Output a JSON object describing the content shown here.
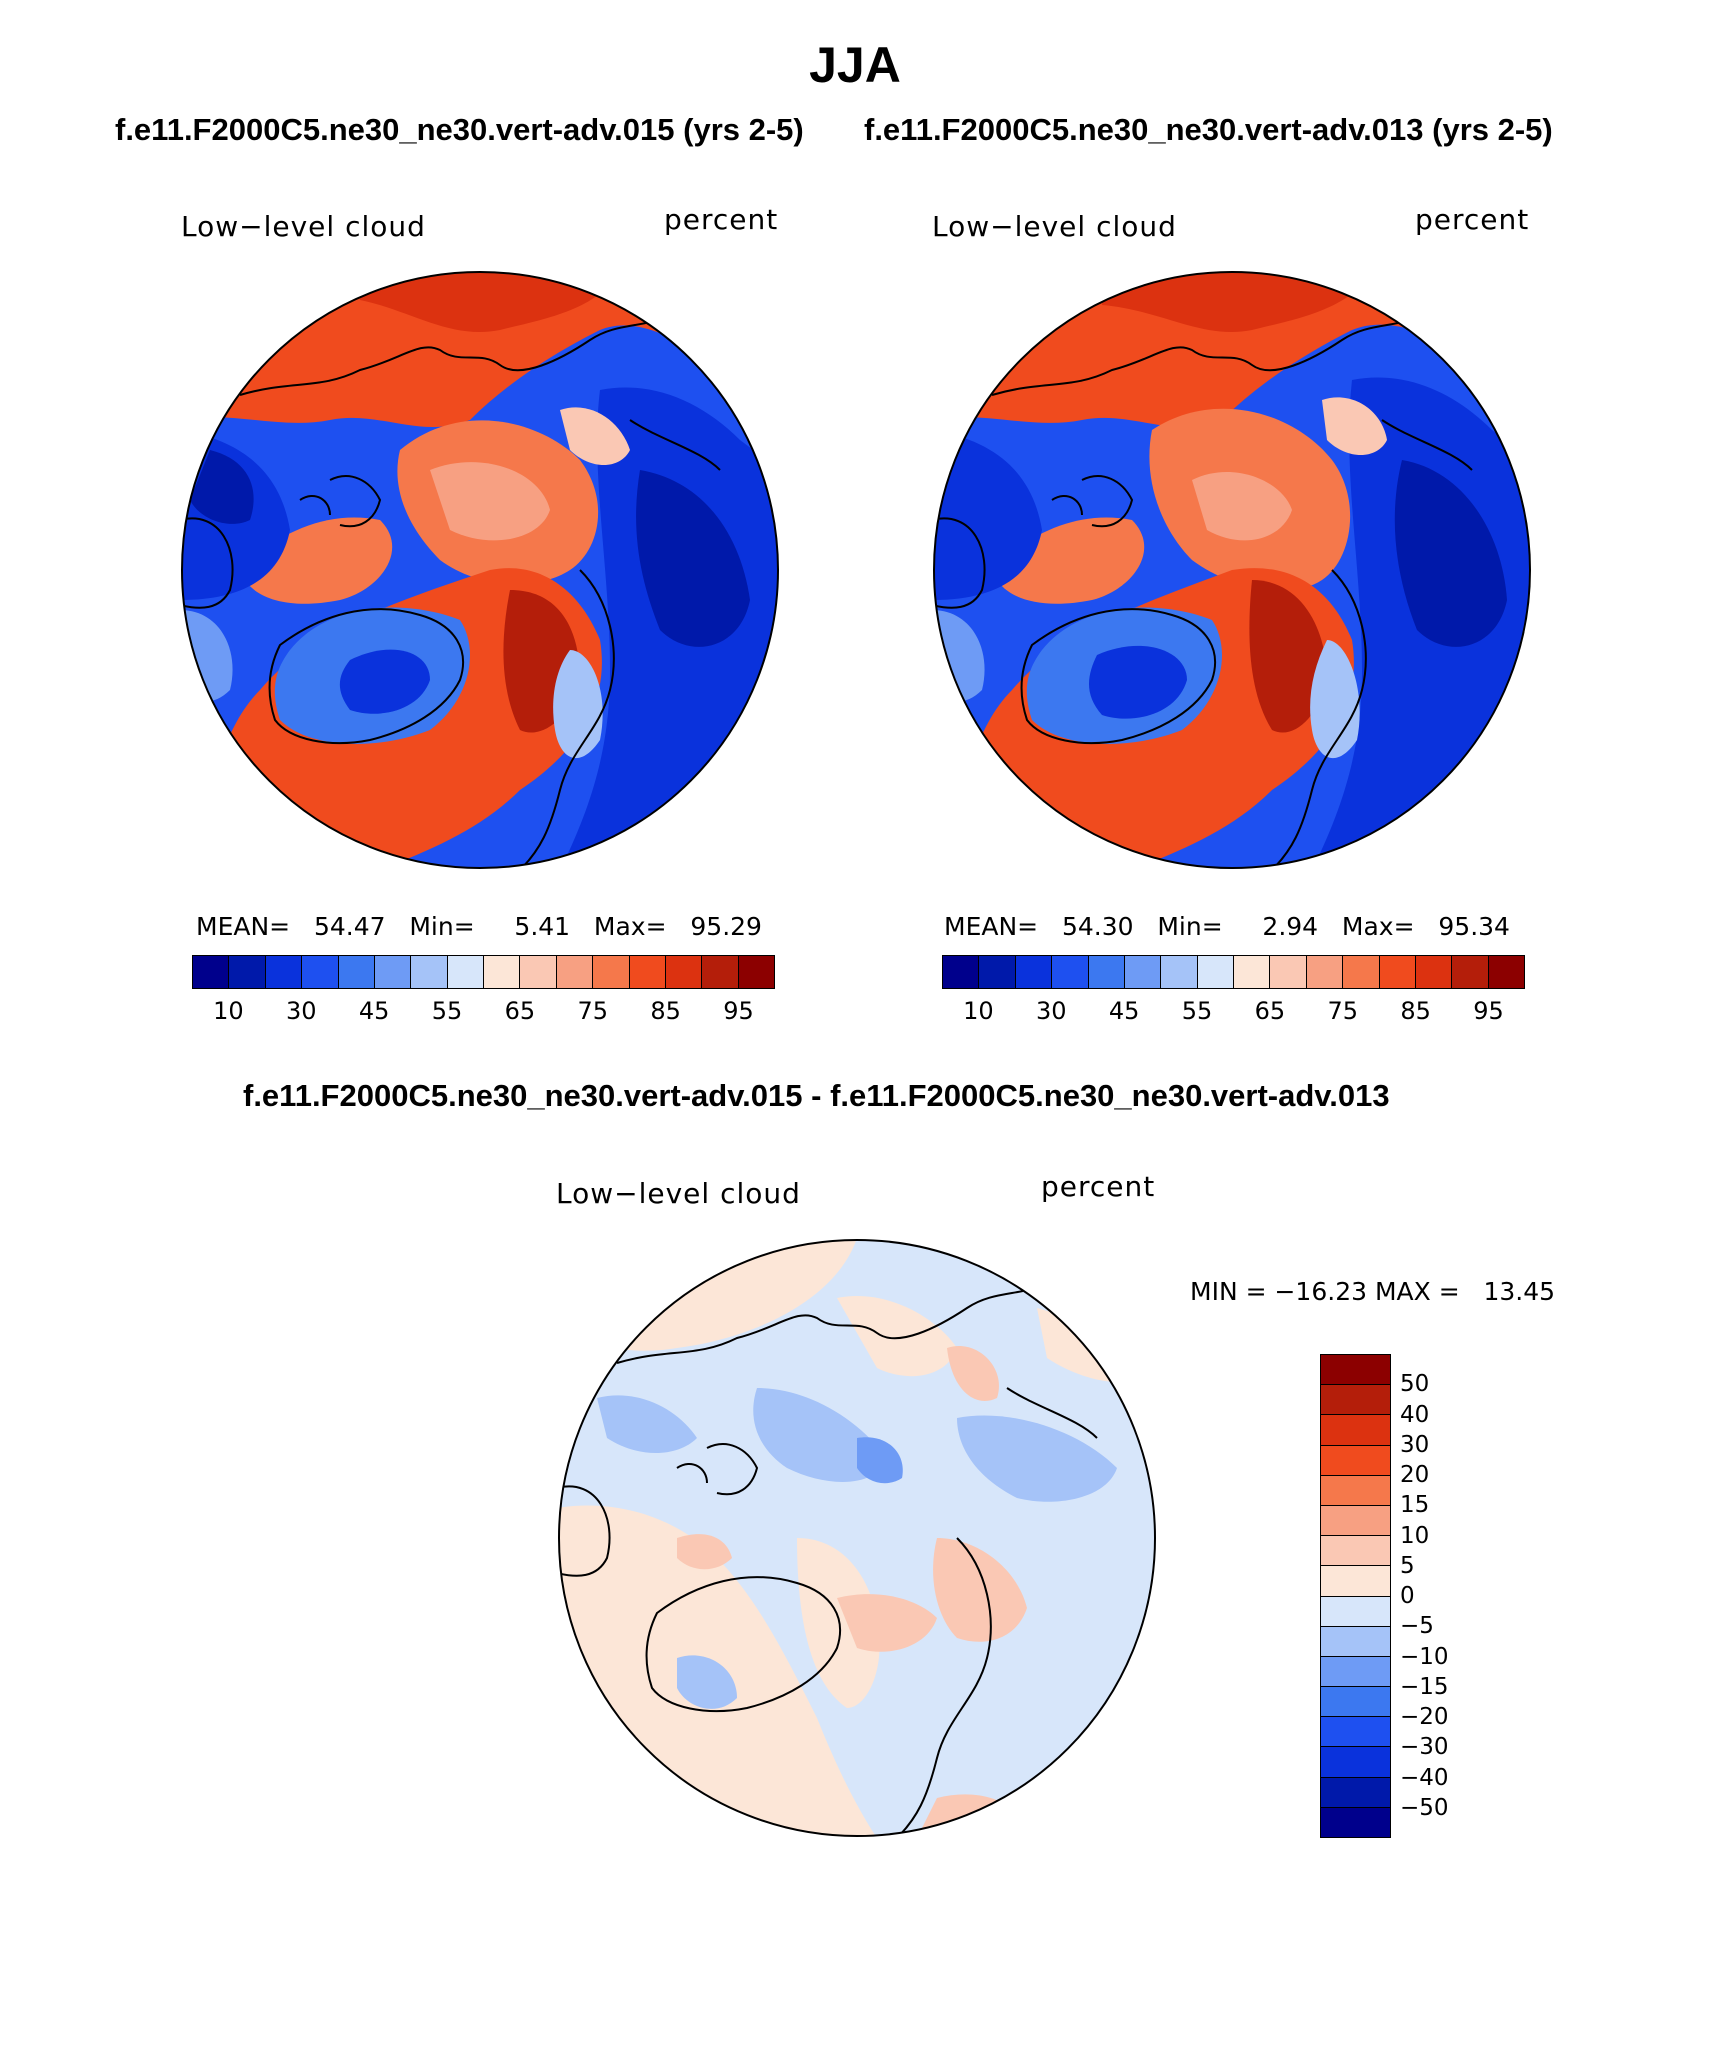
{
  "title": "JJA",
  "top_subtitle_left": "f.e11.F2000C5.ne30_ne30.vert-adv.015 (yrs 2-5)",
  "top_subtitle_right": "f.e11.F2000C5.ne30_ne30.vert-adv.013 (yrs 2-5)",
  "diff_subtitle": "f.e11.F2000C5.ne30_ne30.vert-adv.015 - f.e11.F2000C5.ne30_ne30.vert-adv.013",
  "panels": {
    "left": {
      "variable": "Low−level cloud",
      "units": "percent",
      "stats": "MEAN=   54.47   Min=     5.41   Max=   95.29"
    },
    "right": {
      "variable": "Low−level cloud",
      "units": "percent",
      "stats": "MEAN=   54.30   Min=     2.94   Max=   95.34"
    },
    "diff": {
      "variable": "Low−level cloud",
      "units": "percent",
      "stats": "MIN = −16.23 MAX =   13.45"
    }
  },
  "colorbar_abs": {
    "colors": [
      "#00008c",
      "#0019aa",
      "#0a32dc",
      "#1e50f0",
      "#3c78f0",
      "#6e9bf5",
      "#a5c3f8",
      "#d7e6fa",
      "#fce6d7",
      "#fac8b4",
      "#f7a082",
      "#f5784b",
      "#f04b1e",
      "#dc3210",
      "#b41e0a",
      "#8c0000"
    ],
    "labels": [
      "10",
      "30",
      "45",
      "55",
      "65",
      "75",
      "85",
      "95"
    ]
  },
  "colorbar_diff": {
    "colors": [
      "#8c0000",
      "#b41e0a",
      "#dc3210",
      "#f04b1e",
      "#f5784b",
      "#f7a082",
      "#fac8b4",
      "#fce6d7",
      "#d7e6fa",
      "#a5c3f8",
      "#6e9bf5",
      "#3c78f0",
      "#1e50f0",
      "#0a32dc",
      "#0019aa",
      "#00008c"
    ],
    "labels": [
      "50",
      "40",
      "30",
      "20",
      "15",
      "10",
      "5",
      "0",
      "−5",
      "−10",
      "−15",
      "−20",
      "−30",
      "−40",
      "−50"
    ]
  }
}
